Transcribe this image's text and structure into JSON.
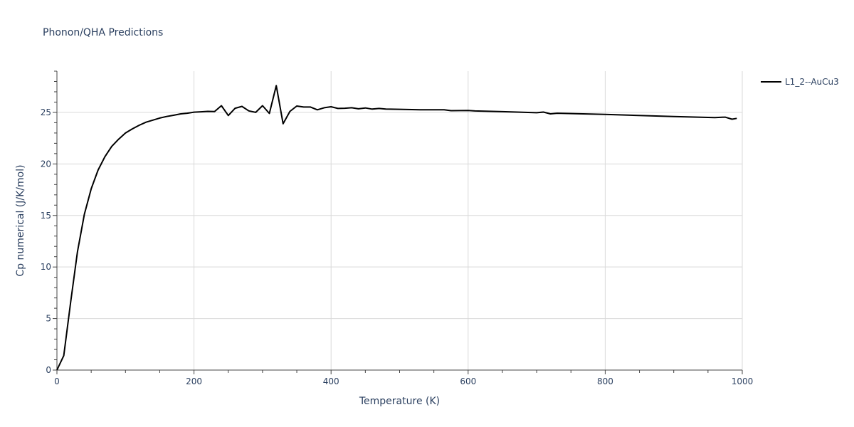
{
  "chart_data": {
    "type": "line",
    "title": "Phonon/QHA Predictions",
    "xlabel": "Temperature (K)",
    "ylabel": "Cp numerical (J/K/mol)",
    "xlim": [
      0,
      1000
    ],
    "ylim": [
      0,
      29
    ],
    "x_ticks": [
      0,
      200,
      400,
      600,
      800,
      1000
    ],
    "y_ticks": [
      0,
      5,
      10,
      15,
      20,
      25
    ],
    "grid": true,
    "legend_position": "top-right",
    "series": [
      {
        "name": "L1_2--AuCu3",
        "color": "#000000",
        "x": [
          0,
          10,
          20,
          30,
          40,
          50,
          60,
          70,
          80,
          90,
          100,
          110,
          120,
          130,
          140,
          150,
          160,
          170,
          180,
          190,
          200,
          210,
          220,
          230,
          240,
          250,
          260,
          270,
          280,
          290,
          300,
          310,
          320,
          330,
          340,
          350,
          360,
          370,
          380,
          390,
          400,
          410,
          420,
          430,
          440,
          450,
          460,
          470,
          480,
          500,
          530,
          565,
          575,
          600,
          610,
          650,
          700,
          710,
          720,
          730,
          800,
          900,
          960,
          975,
          985,
          992
        ],
        "values": [
          0,
          1.4,
          6.6,
          11.5,
          15.1,
          17.6,
          19.4,
          20.7,
          21.7,
          22.4,
          23.0,
          23.4,
          23.75,
          24.05,
          24.25,
          24.45,
          24.6,
          24.72,
          24.85,
          24.92,
          25.02,
          25.06,
          25.1,
          25.08,
          25.65,
          24.7,
          25.4,
          25.58,
          25.15,
          25.0,
          25.65,
          24.9,
          27.6,
          23.9,
          25.1,
          25.62,
          25.52,
          25.52,
          25.25,
          25.45,
          25.55,
          25.38,
          25.4,
          25.45,
          25.35,
          25.43,
          25.32,
          25.38,
          25.32,
          25.3,
          25.26,
          25.25,
          25.17,
          25.18,
          25.14,
          25.07,
          24.97,
          25.03,
          24.86,
          24.92,
          24.8,
          24.6,
          24.5,
          24.54,
          24.34,
          24.42
        ]
      }
    ]
  }
}
